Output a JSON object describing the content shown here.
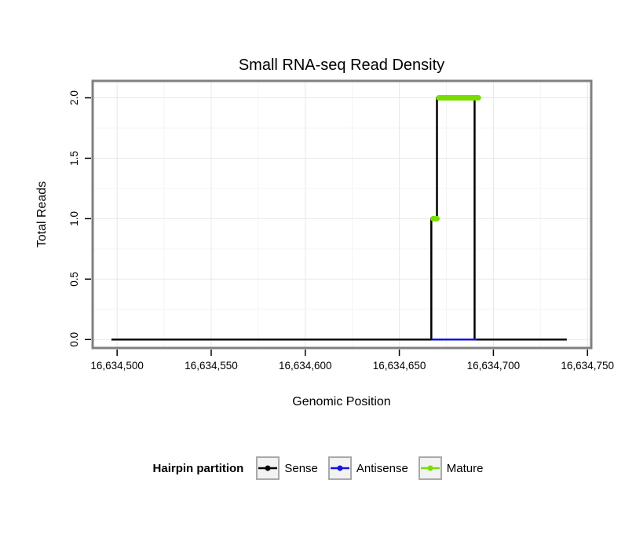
{
  "page": {
    "background": "#ffffff"
  },
  "chart_data": {
    "type": "line",
    "title": "Small RNA-seq Read Density",
    "xlabel": "Genomic Position",
    "ylabel": "Total Reads",
    "xlim": [
      16634487,
      16634752
    ],
    "ylim": [
      -0.07,
      2.14
    ],
    "x_ticks": [
      16634500,
      16634550,
      16634600,
      16634650,
      16634700,
      16634750
    ],
    "x_tick_labels": [
      "16,634,500",
      "16,634,550",
      "16,634,600",
      "16,634,650",
      "16,634,700",
      "16,634,750"
    ],
    "y_ticks": [
      0,
      0.5,
      1,
      1.5,
      2
    ],
    "y_tick_labels": [
      "0.0",
      "0.5",
      "1.0",
      "1.5",
      "2.0"
    ],
    "grid": true,
    "legend": {
      "position": "bottom",
      "title": "Hairpin partition",
      "entries": [
        {
          "label": "Sense",
          "color": "#000000"
        },
        {
          "label": "Antisense",
          "color": "#1414dc"
        },
        {
          "label": "Mature",
          "color": "#77dd00"
        }
      ]
    },
    "series": [
      {
        "name": "Sense",
        "type": "step-line",
        "color": "#000000",
        "width": 2.5,
        "points": [
          [
            16634497,
            0
          ],
          [
            16634667,
            0
          ],
          [
            16634667,
            1
          ],
          [
            16634670,
            1
          ],
          [
            16634670,
            2
          ],
          [
            16634690,
            2
          ],
          [
            16634690,
            0
          ],
          [
            16634739,
            0
          ]
        ]
      },
      {
        "name": "Antisense",
        "type": "line",
        "color": "#1414dc",
        "width": 2.5,
        "points": [
          [
            16634667,
            0
          ],
          [
            16634691,
            0
          ]
        ]
      },
      {
        "name": "Mature",
        "type": "thick-segments",
        "color": "#77dd00",
        "width": 7,
        "segments": [
          [
            [
              16634668,
              1
            ],
            [
              16634670,
              1
            ]
          ],
          [
            [
              16634671,
              2
            ],
            [
              16634692,
              2
            ]
          ]
        ]
      }
    ],
    "colors": {
      "panel_border": "#808080",
      "grid_major": "#e8e8e8",
      "grid_minor": "#f4f4f4",
      "tick": "#000000",
      "legend_key_bg": "#f2f2f2",
      "legend_key_border": "#a9a9a9"
    }
  }
}
